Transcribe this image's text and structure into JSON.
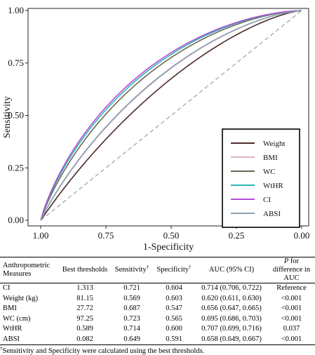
{
  "chart_data": {
    "type": "line",
    "xlabel": "1-Specificity",
    "ylabel": "Sensitivity",
    "x_reversed": true,
    "xlim": [
      1.0,
      0.0
    ],
    "ylim": [
      0.0,
      1.0
    ],
    "x_ticks": [
      "1.00",
      "0.75",
      "0.50",
      "0.25",
      "0.00"
    ],
    "y_ticks": [
      "0.00",
      "0.25",
      "0.50",
      "0.75",
      "1.00"
    ],
    "grid": false,
    "legend_position": "bottom-right",
    "reference_line": {
      "style": "dashed",
      "color": "#a6a6a6"
    },
    "series": [
      {
        "name": "Weight",
        "color": "#4a2b2a",
        "auc": 0.62
      },
      {
        "name": "BMI",
        "color": "#d8b4c8",
        "auc": 0.656
      },
      {
        "name": "WC",
        "color": "#6e6650",
        "auc": 0.695
      },
      {
        "name": "WtHR",
        "color": "#2bb5b5",
        "auc": 0.707
      },
      {
        "name": "CI",
        "color": "#b44bd8",
        "auc": 0.714
      },
      {
        "name": "ABSI",
        "color": "#8aa0b0",
        "auc": 0.658
      }
    ]
  },
  "table": {
    "headers": {
      "measure": "Anthropometric Measures",
      "thresholds": "Best thresholds",
      "sensitivity": "Sensitivity",
      "specificity": "Specificity",
      "auc": "AUC (95% CI)",
      "p_italic": "P",
      "p_rest": " for difference in AUC",
      "dagger": "†"
    },
    "rows": [
      {
        "measure": "CI",
        "threshold": "1.313",
        "sensitivity": "0.721",
        "specificity": "0.604",
        "auc": "0.714 (0.706, 0.722)",
        "p": "Reference"
      },
      {
        "measure": "Weight (kg)",
        "threshold": "81.15",
        "sensitivity": "0.569",
        "specificity": "0.603",
        "auc": "0.620 (0.611, 0.630)",
        "p": "<0.001"
      },
      {
        "measure": "BMI",
        "threshold": "27.72",
        "sensitivity": "0.687",
        "specificity": "0.547",
        "auc": "0.656 (0.647, 0.665)",
        "p": "<0.001"
      },
      {
        "measure": "WC (cm)",
        "threshold": "97.25",
        "sensitivity": "0.723",
        "specificity": "0.565",
        "auc": "0.695 (0.686, 0.703)",
        "p": "<0.001"
      },
      {
        "measure": "WtHR",
        "threshold": "0.589",
        "sensitivity": "0.714",
        "specificity": "0.600",
        "auc": "0.707 (0.699, 0.716)",
        "p": "0.037"
      },
      {
        "measure": "ABSI",
        "threshold": "0.082",
        "sensitivity": "0.649",
        "specificity": "0.591",
        "auc": "0.658 (0.649, 0.667)",
        "p": "<0.001"
      }
    ]
  },
  "footnote": {
    "dagger": "†",
    "text": "Sensitivity and Specificity were calculated using the best thresholds."
  }
}
